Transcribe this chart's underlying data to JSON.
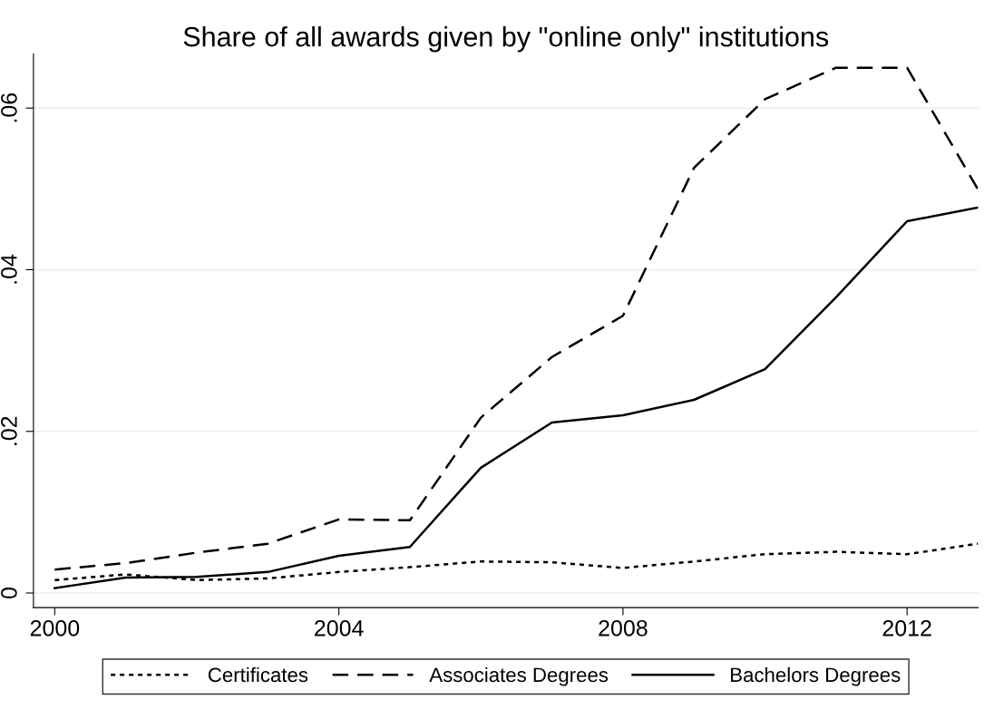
{
  "chart_data": {
    "type": "line",
    "title": "Share of all awards given by \"online only\" institutions",
    "x": [
      2000,
      2001,
      2002,
      2003,
      2004,
      2005,
      2006,
      2007,
      2008,
      2009,
      2010,
      2011,
      2012,
      2013
    ],
    "series": [
      {
        "name": "Certificates",
        "color": "#000000",
        "line_style": "dotted",
        "values": [
          0.0016,
          0.0023,
          0.0016,
          0.0018,
          0.0026,
          0.0032,
          0.0039,
          0.0038,
          0.0031,
          0.0039,
          0.0048,
          0.0051,
          0.0048,
          0.0061
        ]
      },
      {
        "name": "Associates Degrees",
        "color": "#000000",
        "line_style": "dashed",
        "values": [
          0.0029,
          0.0037,
          0.005,
          0.0061,
          0.0091,
          0.009,
          0.0217,
          0.0292,
          0.0343,
          0.0526,
          0.0611,
          0.065,
          0.065,
          0.0499
        ]
      },
      {
        "name": "Bachelors Degrees",
        "color": "#000000",
        "line_style": "solid",
        "values": [
          0.0006,
          0.0019,
          0.002,
          0.0026,
          0.0046,
          0.0057,
          0.0155,
          0.0211,
          0.022,
          0.0239,
          0.0277,
          0.0366,
          0.046,
          0.0477
        ]
      }
    ],
    "xlim": [
      1999.7,
      2013
    ],
    "xticks": [
      2000,
      2004,
      2008,
      2012
    ],
    "ylim": [
      -0.0018,
      0.0667
    ],
    "yticks": [
      {
        "value": 0,
        "label": "0"
      },
      {
        "value": 0.02,
        "label": ".02"
      },
      {
        "value": 0.04,
        "label": ".04"
      },
      {
        "value": 0.06,
        "label": ".06"
      }
    ],
    "grid": "y",
    "legend": "bottom",
    "marker": "none"
  }
}
